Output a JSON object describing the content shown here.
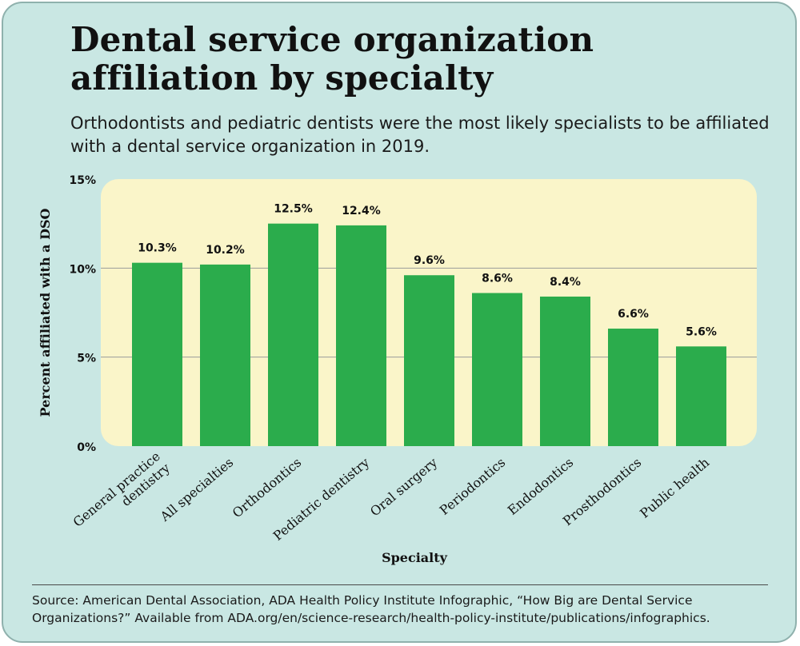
{
  "title": "Dental service organization affiliation by specialty",
  "subtitle": "Orthodontists and pediatric dentists were the most likely specialists to be affiliated with a dental service organization in 2019.",
  "source": "Source: American Dental Association, ADA Health Policy Institute Infographic, “How Big are Dental Service Organizations?” Available from ADA.org/en/science-research/health-policy-institute/publications/infographics.",
  "colors": {
    "background": "#c9e7e3",
    "plot_background": "#faf5c9",
    "bar": "#2bac4c",
    "gridline": "#9a9a9a"
  },
  "chart_data": {
    "type": "bar",
    "categories": [
      "General practice dentistry",
      "All specialties",
      "Orthodontics",
      "Pediatric dentistry",
      "Oral surgery",
      "Periodontics",
      "Endodontics",
      "Prosthodontics",
      "Public health"
    ],
    "values": [
      10.3,
      10.2,
      12.5,
      12.4,
      9.6,
      8.6,
      8.4,
      6.6,
      5.6
    ],
    "value_labels": [
      "10.3%",
      "10.2%",
      "12.5%",
      "12.4%",
      "9.6%",
      "8.6%",
      "8.4%",
      "6.6%",
      "5.6%"
    ],
    "category_label_lines": [
      [
        "General practice",
        "dentistry"
      ],
      [
        "All specialties"
      ],
      [
        "Orthodontics"
      ],
      [
        "Pediatric dentistry"
      ],
      [
        "Oral surgery"
      ],
      [
        "Periodontics"
      ],
      [
        "Endodontics"
      ],
      [
        "Prosthodontics"
      ],
      [
        "Public health"
      ]
    ],
    "y_ticks": [
      0,
      5,
      10,
      15
    ],
    "y_tick_labels": [
      "0%",
      "5%",
      "10%",
      "15%"
    ],
    "ylim": [
      0,
      15
    ],
    "xlabel": "Specialty",
    "ylabel": "Percent affiliated with a DSO",
    "grid": true
  }
}
